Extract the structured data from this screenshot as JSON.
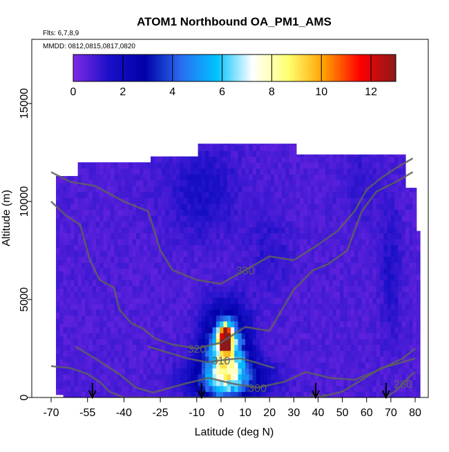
{
  "chart_data": {
    "type": "heatmap",
    "title": "ATOM1 Northbound OA_PM1_AMS",
    "subtitle_flights": "Flts: 6,7,8,9",
    "subtitle_dates": "MMDD: 0812,0815,0817,0820",
    "xlabel": "Latitude (deg N)",
    "ylabel": "Altitude (m)",
    "xlim": [
      -72,
      86
    ],
    "ylim": [
      0,
      18000
    ],
    "x_ticks": [
      -70,
      -55,
      -40,
      -25,
      -10,
      0,
      10,
      20,
      30,
      40,
      50,
      60,
      70,
      80
    ],
    "x_tick_labels": [
      "-70",
      "-55",
      "-40",
      "-25",
      "-10",
      "0",
      "10",
      "20",
      "30",
      "40",
      "50",
      "60",
      "70",
      "80"
    ],
    "y_ticks": [
      0,
      5000,
      10000,
      15000
    ],
    "y_tick_labels": [
      "0",
      "5000",
      "10000",
      "15000"
    ],
    "colorbar": {
      "min": 0,
      "max": 13,
      "ticks": [
        0,
        2,
        4,
        6,
        8,
        10,
        12
      ],
      "tick_labels": [
        "0",
        "2",
        "4",
        "6",
        "8",
        "10",
        "12"
      ],
      "stops": [
        "#7f2ae6",
        "#1a10c8",
        "#0000a8",
        "#2a6cf0",
        "#00c2ff",
        "#ffffff",
        "#ffff70",
        "#ffa000",
        "#ff0000",
        "#8b1a1a"
      ]
    },
    "background_value": 0.7,
    "enhancements": [
      {
        "lat": 2,
        "alt": 3000,
        "value": 11.5,
        "sigma_lat": 2.0,
        "sigma_alt": 500
      },
      {
        "lat": 2,
        "alt": 2300,
        "value": 7.0,
        "sigma_lat": 6.0,
        "sigma_alt": 1400
      },
      {
        "lat": 3,
        "alt": 900,
        "value": 4.0,
        "sigma_lat": 11.0,
        "sigma_alt": 700
      },
      {
        "lat": -8,
        "alt": 10500,
        "value": 1.6,
        "sigma_lat": 10.0,
        "sigma_alt": 1500
      },
      {
        "lat": 70,
        "alt": 6500,
        "value": 1.4,
        "sigma_lat": 3.0,
        "sigma_alt": 2500
      },
      {
        "lat": 57,
        "alt": 10800,
        "value": 1.2,
        "sigma_lat": 5.0,
        "sigma_alt": 1200
      },
      {
        "lat": 20,
        "alt": 7500,
        "value": 1.2,
        "sigma_lat": 6.0,
        "sigma_alt": 1500
      }
    ],
    "contours": [
      {
        "label": "330",
        "points": [
          [
            -70,
            11500
          ],
          [
            -62,
            11000
          ],
          [
            -52,
            10800
          ],
          [
            -40,
            10000
          ],
          [
            -30,
            9500
          ],
          [
            -25,
            7500
          ],
          [
            -20,
            6500
          ],
          [
            -10,
            6000
          ],
          [
            0,
            5800
          ],
          [
            10,
            6500
          ],
          [
            20,
            7200
          ],
          [
            30,
            7000
          ],
          [
            40,
            7800
          ],
          [
            48,
            8500
          ],
          [
            55,
            9500
          ],
          [
            60,
            10600
          ],
          [
            66,
            11200
          ],
          [
            72,
            11700
          ],
          [
            79,
            12200
          ]
        ]
      },
      {
        "label": "320",
        "points": [
          [
            -70,
            10000
          ],
          [
            -64,
            9300
          ],
          [
            -58,
            8800
          ],
          [
            -54,
            7000
          ],
          [
            -50,
            6000
          ],
          [
            -44,
            5600
          ],
          [
            -42,
            4500
          ],
          [
            -37,
            3800
          ],
          [
            -32,
            3500
          ],
          [
            -27,
            3000
          ],
          [
            -20,
            2700
          ],
          [
            -10,
            2500
          ],
          [
            0,
            2800
          ],
          [
            10,
            3600
          ],
          [
            20,
            3400
          ],
          [
            30,
            5500
          ],
          [
            38,
            6500
          ],
          [
            44,
            6800
          ],
          [
            52,
            7500
          ],
          [
            58,
            9500
          ],
          [
            64,
            10500
          ],
          [
            72,
            11000
          ],
          [
            79,
            11500
          ]
        ]
      },
      {
        "label": "310",
        "points": [
          [
            -30,
            2600
          ],
          [
            -22,
            2300
          ],
          [
            -14,
            2000
          ],
          [
            -6,
            1800
          ],
          [
            0,
            1900
          ],
          [
            8,
            2000
          ],
          [
            14,
            1800
          ],
          [
            22,
            1500
          ]
        ]
      },
      {
        "label": "300",
        "points": [
          [
            -60,
            2600
          ],
          [
            -52,
            2000
          ],
          [
            -42,
            1200
          ],
          [
            -35,
            500
          ],
          [
            -28,
            250
          ],
          [
            -15,
            700
          ],
          [
            -5,
            1000
          ],
          [
            5,
            700
          ],
          [
            15,
            500
          ],
          [
            26,
            800
          ],
          [
            35,
            1300
          ],
          [
            45,
            1000
          ],
          [
            55,
            900
          ],
          [
            65,
            1400
          ],
          [
            75,
            2000
          ],
          [
            80,
            2500
          ]
        ]
      },
      {
        "label": "290",
        "points": [
          [
            -70,
            1600
          ],
          [
            -62,
            1500
          ],
          [
            -55,
            1200
          ],
          [
            -50,
            800
          ],
          [
            -46,
            300
          ],
          [
            -40,
            0
          ],
          [
            40,
            0
          ],
          [
            50,
            300
          ],
          [
            58,
            900
          ],
          [
            66,
            1500
          ],
          [
            72,
            1700
          ],
          [
            80,
            2000
          ]
        ]
      },
      {
        "label": "280",
        "points": [
          [
            68,
            0
          ],
          [
            72,
            350
          ],
          [
            75,
            700
          ],
          [
            78,
            1100
          ],
          [
            80,
            1300
          ]
        ]
      }
    ],
    "arrows": [
      -53,
      -8,
      39,
      68
    ]
  }
}
